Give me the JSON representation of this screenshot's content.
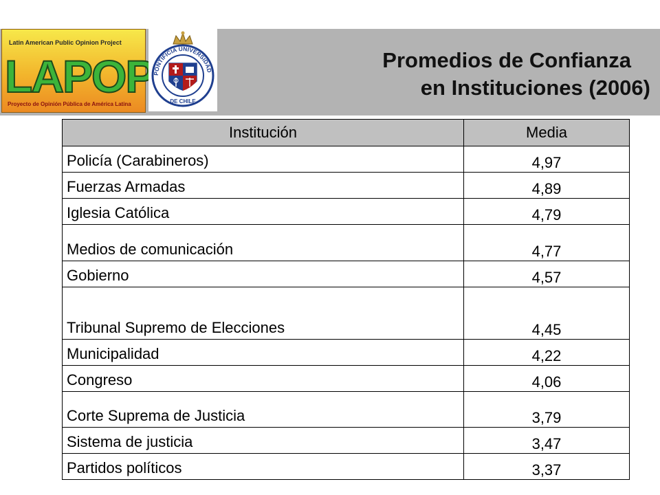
{
  "header": {
    "logo_lapop": {
      "top_text": "Latin American Public Opinion Project",
      "wordmark": "LAPOP",
      "bottom_text": "Proyecto de Opinión Pública de América Latina"
    },
    "seal": {
      "outer_text": "PONTIFICIA UNIVERSIDAD CATÓLICA DE CHILE"
    },
    "title_line1": "Promedios de Confianza",
    "title_line2": "en Instituciones (2006)"
  },
  "table": {
    "columns": [
      "Institución",
      "Media"
    ],
    "rows": [
      {
        "institucion": "Policía (Carabineros)",
        "media": "4,97"
      },
      {
        "institucion": "Fuerzas Armadas",
        "media": "4,89"
      },
      {
        "institucion": "Iglesia Católica",
        "media": "4,79"
      },
      {
        "institucion": "Medios de comunicación",
        "media": "4,77"
      },
      {
        "institucion": "Gobierno",
        "media": "4,57"
      },
      {
        "institucion": "Tribunal Supremo de Elecciones",
        "media": "4,45"
      },
      {
        "institucion": "Municipalidad",
        "media": "4,22"
      },
      {
        "institucion": "Congreso",
        "media": "4,06"
      },
      {
        "institucion": "Corte Suprema de Justicia",
        "media": "3,79"
      },
      {
        "institucion": "Sistema de justicia",
        "media": "3,47"
      },
      {
        "institucion": "Partidos políticos",
        "media": "3,37"
      }
    ]
  },
  "colors": {
    "header_band": "#b3b3b3",
    "table_header_bg": "#c0c0c0",
    "lapop_green": "#3cb43a",
    "lapop_orange": "#ec8a22",
    "seal_blue": "#1f3f8f",
    "seal_gold": "#c8a040"
  }
}
